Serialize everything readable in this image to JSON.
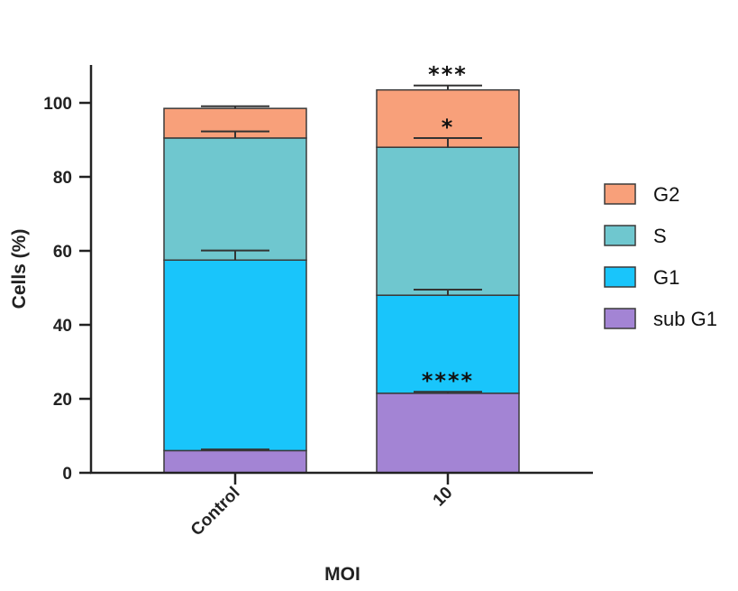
{
  "chart_data": {
    "type": "bar",
    "stacked": true,
    "categories": [
      "Control",
      "10"
    ],
    "series": [
      {
        "name": "sub G1",
        "values": [
          6,
          21.5
        ],
        "errors": [
          0.3,
          0.4
        ],
        "color": "#a384d4"
      },
      {
        "name": "G1",
        "values": [
          51.5,
          26.5
        ],
        "errors": [
          2.6,
          1.5
        ],
        "color": "#19c5fb"
      },
      {
        "name": "S",
        "values": [
          33,
          40
        ],
        "errors": [
          1.8,
          2.5
        ],
        "color": "#6fc7cf"
      },
      {
        "name": "G2",
        "values": [
          8,
          15.5
        ],
        "errors": [
          0.6,
          1.2
        ],
        "color": "#f8a07a"
      }
    ],
    "significance": [
      {
        "category": "10",
        "series": "sub G1",
        "label": "****"
      },
      {
        "category": "10",
        "series": "S",
        "label": "*"
      },
      {
        "category": "10",
        "series": "G2",
        "label": "***"
      }
    ],
    "yticks": [
      0,
      20,
      40,
      60,
      80,
      100
    ],
    "ylim": [
      0,
      110
    ],
    "xlabel": "MOI",
    "ylabel": "Cells  (%)",
    "legend_position": "right",
    "grid": false
  }
}
